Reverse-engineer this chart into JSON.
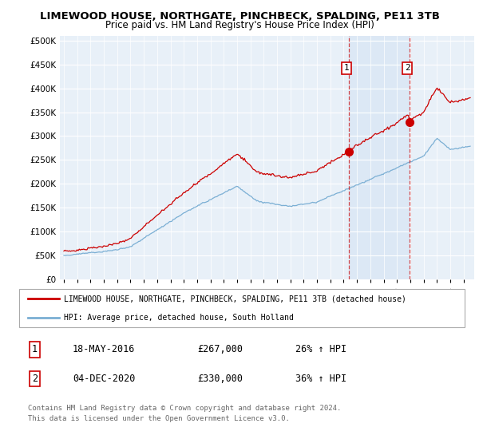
{
  "title": "LIMEWOOD HOUSE, NORTHGATE, PINCHBECK, SPALDING, PE11 3TB",
  "subtitle": "Price paid vs. HM Land Registry's House Price Index (HPI)",
  "legend_line1": "LIMEWOOD HOUSE, NORTHGATE, PINCHBECK, SPALDING, PE11 3TB (detached house)",
  "legend_line2": "HPI: Average price, detached house, South Holland",
  "sale1_date": "18-MAY-2016",
  "sale1_price": "£267,000",
  "sale1_hpi": "26% ↑ HPI",
  "sale1_year": 2016.38,
  "sale1_value": 267000,
  "sale2_date": "04-DEC-2020",
  "sale2_price": "£330,000",
  "sale2_hpi": "36% ↑ HPI",
  "sale2_year": 2020.92,
  "sale2_value": 330000,
  "footer": "Contains HM Land Registry data © Crown copyright and database right 2024.\nThis data is licensed under the Open Government Licence v3.0.",
  "red_color": "#cc0000",
  "blue_color": "#7bafd4",
  "highlight_color": "#dce8f5",
  "background_color": "#e8f0f8",
  "ylim": [
    0,
    500000
  ],
  "yticks": [
    0,
    50000,
    100000,
    150000,
    200000,
    250000,
    300000,
    350000,
    400000,
    450000,
    500000
  ],
  "xlim_start": 1994.7,
  "xlim_end": 2025.8
}
